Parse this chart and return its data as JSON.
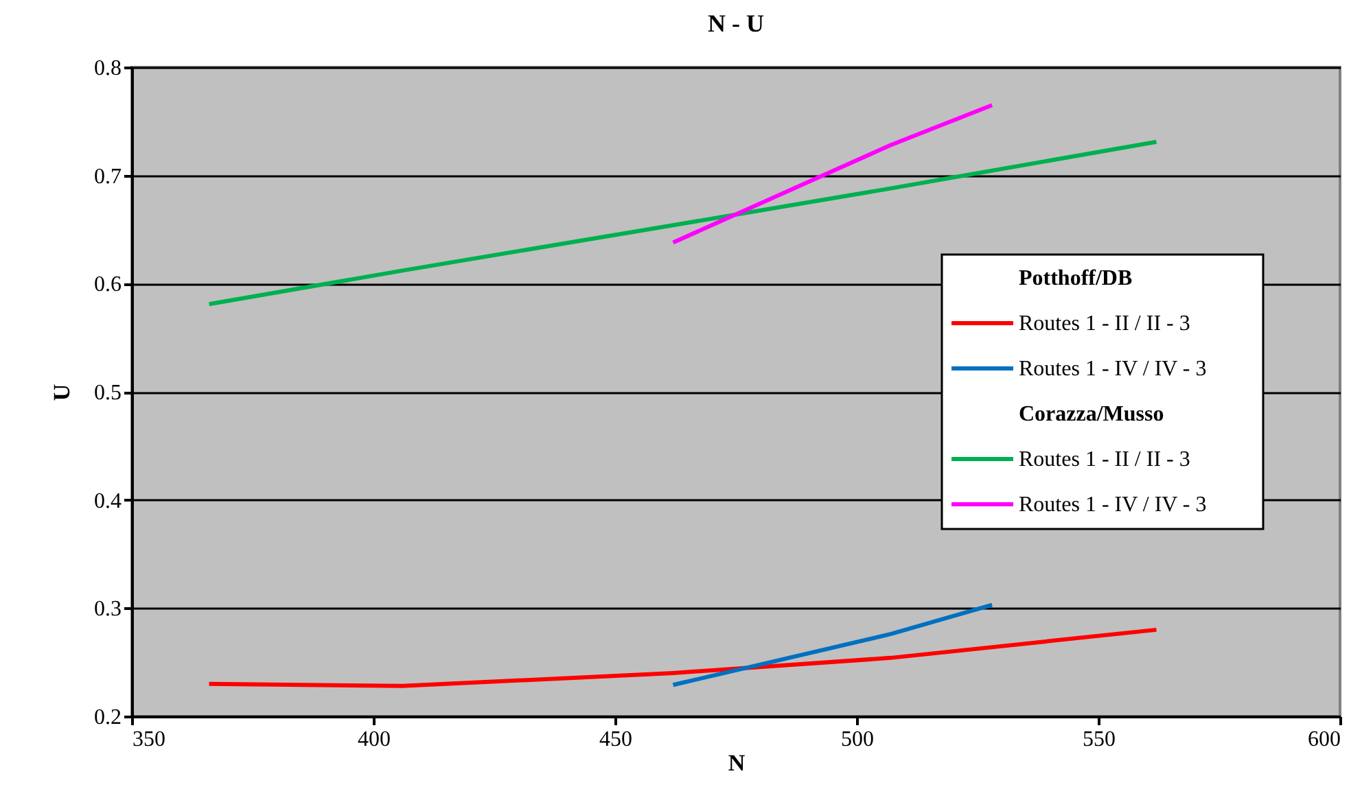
{
  "chart_data": {
    "type": "line",
    "title": "N - U",
    "xlabel": "N",
    "ylabel": "U",
    "annotations": [
      "Potthoff/DB",
      "Corazza/Musso"
    ],
    "series": [
      {
        "name": "Routes 1 - II / II - 3",
        "color": "#ff0000",
        "x": [
          366,
          406,
          462,
          507,
          562
        ],
        "values": [
          0.23,
          0.228,
          0.24,
          0.254,
          0.28
        ]
      },
      {
        "name": "Routes 1 - IV / IV - 3",
        "color": "#0070c0",
        "x": [
          462,
          507,
          528
        ],
        "values": [
          0.229,
          0.276,
          0.303
        ]
      },
      {
        "name": "Routes 1 - II / II - 3",
        "color": "#00b050",
        "x": [
          366,
          406,
          462,
          507,
          562
        ],
        "values": [
          0.581,
          0.612,
          0.654,
          0.688,
          0.731
        ]
      },
      {
        "name": "Routes 1 - IV / IV - 3",
        "color": "#ff00ff",
        "x": [
          462,
          507,
          528
        ],
        "values": [
          0.638,
          0.728,
          0.765
        ]
      }
    ],
    "xlim": [
      350,
      600
    ],
    "xticks": [
      350,
      400,
      450,
      500,
      550,
      600
    ],
    "ylim": [
      0.2,
      0.8
    ],
    "yticks": [
      0.2,
      0.3,
      0.4,
      0.5,
      0.6,
      0.7,
      0.8
    ],
    "grid": "y",
    "legend": "right",
    "line_style": "solid",
    "marker": "none"
  }
}
